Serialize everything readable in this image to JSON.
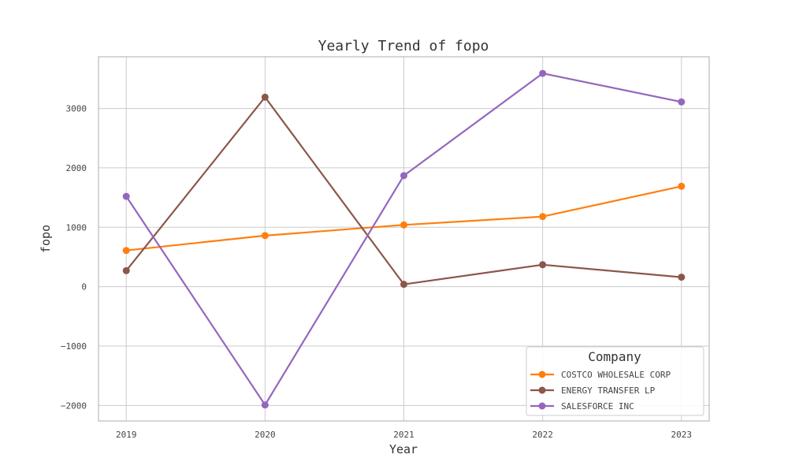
{
  "chart_data": {
    "type": "line",
    "title": "Yearly Trend of fopo",
    "xlabel": "Year",
    "ylabel": "fopo",
    "x": [
      2019,
      2020,
      2021,
      2022,
      2023
    ],
    "x_tick_labels": [
      "2019",
      "2020",
      "2021",
      "2022",
      "2023"
    ],
    "y_ticks": [
      -2000,
      -1000,
      0,
      1000,
      2000,
      3000
    ],
    "y_tick_labels": [
      "−2000",
      "−1000",
      "0",
      "1000",
      "2000",
      "3000"
    ],
    "ylim": [
      -2260,
      3870
    ],
    "xlim": [
      2018.8,
      2023.2
    ],
    "grid": true,
    "legend": {
      "title": "Company",
      "placement": "lower-right"
    },
    "series": [
      {
        "name": "COSTCO WHOLESALE CORP",
        "color": "#ff7f0e",
        "values": [
          610,
          860,
          1040,
          1180,
          1690
        ]
      },
      {
        "name": "ENERGY TRANSFER LP",
        "color": "#8c564b",
        "values": [
          270,
          3190,
          40,
          370,
          160
        ]
      },
      {
        "name": "SALESFORCE INC",
        "color": "#9467bd",
        "values": [
          1520,
          -1990,
          1870,
          3590,
          3110
        ]
      }
    ]
  }
}
